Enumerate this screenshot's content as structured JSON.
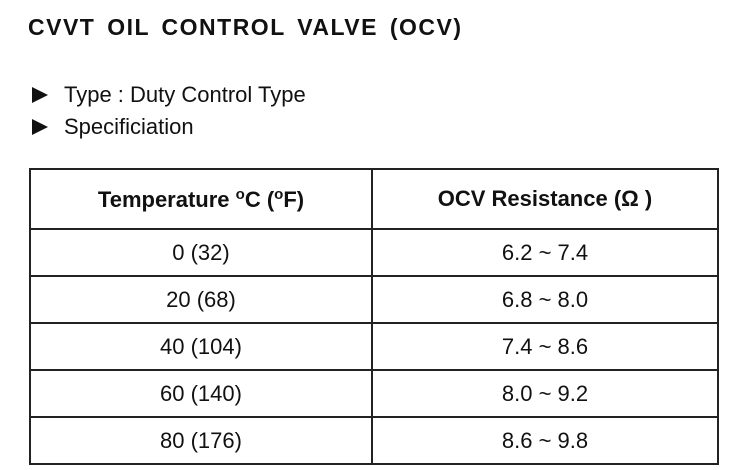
{
  "title": "CVVT OIL CONTROL VALVE (OCV)",
  "specs": {
    "type_line": "Type : Duty Control Type",
    "spec_line": "Specificiation"
  },
  "table": {
    "headers": {
      "temperature": {
        "pre": "Temperature ",
        "deg1": "o",
        "mid": "C (",
        "deg2": "o",
        "post": "F)"
      },
      "resistance": "OCV Resistance (Ω )"
    },
    "rows": [
      {
        "temperature": "0 (32)",
        "resistance": "6.2 ~ 7.4"
      },
      {
        "temperature": "20 (68)",
        "resistance": "6.8 ~ 8.0"
      },
      {
        "temperature": "40 (104)",
        "resistance": "7.4 ~ 8.6"
      },
      {
        "temperature": "60 (140)",
        "resistance": "8.0 ~ 9.2"
      },
      {
        "temperature": "80 (176)",
        "resistance": "8.6 ~ 9.8"
      }
    ]
  }
}
